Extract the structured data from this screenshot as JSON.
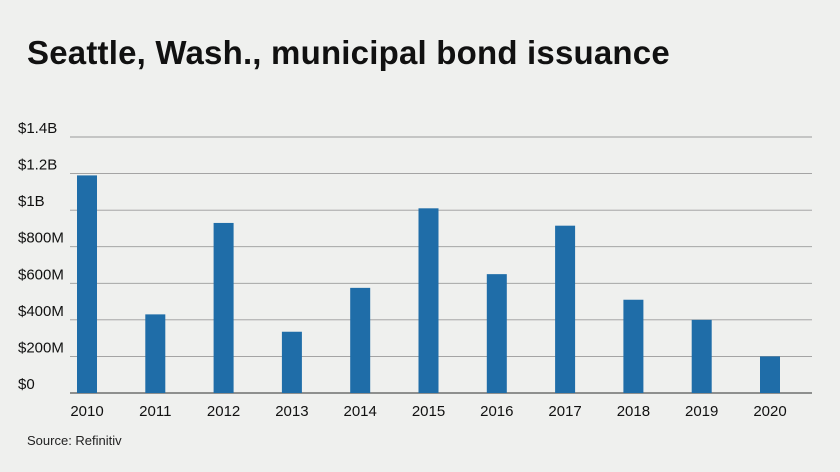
{
  "title": "Seattle, Wash., municipal bond issuance",
  "source": "Source: Refinitiv",
  "colors": {
    "bar": "#1f6da8",
    "grid": "#9a9a9a",
    "background": "#eff0ee"
  },
  "chart_data": {
    "type": "bar",
    "title": "Seattle, Wash., municipal bond issuance",
    "xlabel": "",
    "ylabel": "",
    "categories": [
      "2010",
      "2011",
      "2012",
      "2013",
      "2014",
      "2015",
      "2016",
      "2017",
      "2018",
      "2019",
      "2020"
    ],
    "values": [
      1190,
      430,
      930,
      335,
      575,
      1010,
      650,
      915,
      510,
      400,
      200
    ],
    "unit": "million USD",
    "ylim": [
      0,
      1400
    ],
    "yticks": [
      0,
      200,
      400,
      600,
      800,
      1000,
      1200,
      1400
    ],
    "ytick_labels": [
      "$0",
      "$200M",
      "$400M",
      "$600M",
      "$800M",
      "$1B",
      "$1.2B",
      "$1.4B"
    ],
    "grid": true,
    "legend": "none"
  }
}
